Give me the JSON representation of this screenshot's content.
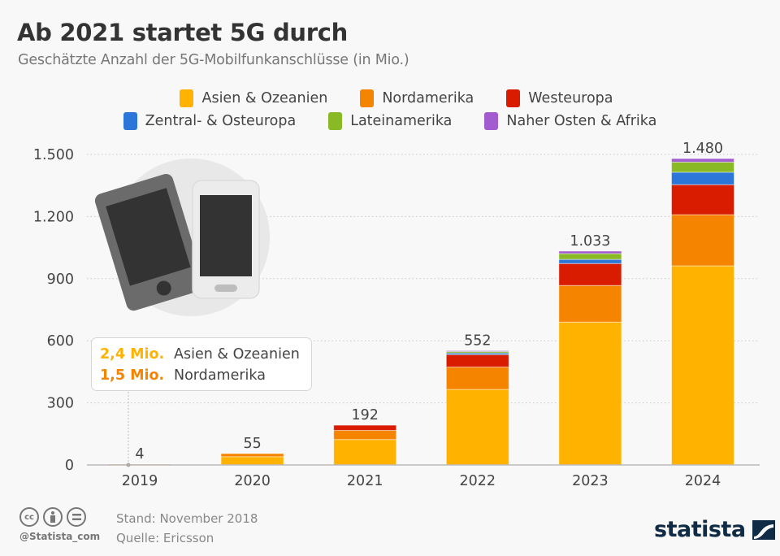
{
  "header": {
    "title": "Ab 2021 startet 5G durch",
    "subtitle": "Geschätzte Anzahl der 5G-Mobilfunkanschlüsse (in Mio.)"
  },
  "legend": [
    {
      "label": "Asien & Ozeanien",
      "color": "#ffb300"
    },
    {
      "label": "Nordamerika",
      "color": "#f58400"
    },
    {
      "label": "Westeuropa",
      "color": "#d91c00"
    },
    {
      "label": "Zentral- & Osteuropa",
      "color": "#2b76d8"
    },
    {
      "label": "Lateinamerika",
      "color": "#89ba25"
    },
    {
      "label": "Naher Osten & Afrika",
      "color": "#a25cd0"
    }
  ],
  "annotation": {
    "rows": [
      {
        "value": "2,4 Mio.",
        "label": "Asien & Ozeanien",
        "color": "#ffb300"
      },
      {
        "value": "1,5 Mio.",
        "label": "Nordamerika",
        "color": "#f58400"
      }
    ]
  },
  "chart_data": {
    "type": "bar",
    "stacked": true,
    "title": "Ab 2021 startet 5G durch",
    "subtitle": "Geschätzte Anzahl der 5G-Mobilfunkanschlüsse (in Mio.)",
    "xlabel": "",
    "ylabel": "",
    "ylim": [
      0,
      1500
    ],
    "yticks": [
      0,
      300,
      600,
      900,
      1200,
      1500
    ],
    "ytick_labels": [
      "0",
      "300",
      "600",
      "900",
      "1.200",
      "1.500"
    ],
    "grid": true,
    "legend_position": "top",
    "categories": [
      "2019",
      "2020",
      "2021",
      "2022",
      "2023",
      "2024"
    ],
    "totals": [
      4,
      55,
      192,
      552,
      1033,
      1480
    ],
    "total_labels": [
      "4",
      "55",
      "192",
      "552",
      "1.033",
      "1.480"
    ],
    "series": [
      {
        "name": "Asien & Ozeanien",
        "color": "#ffb300",
        "values": [
          2.4,
          40,
          123,
          365,
          690,
          962
        ]
      },
      {
        "name": "Nordamerika",
        "color": "#f58400",
        "values": [
          1.5,
          15,
          44,
          108,
          177,
          247
        ]
      },
      {
        "name": "Westeuropa",
        "color": "#d91c00",
        "values": [
          0,
          0,
          25,
          60,
          106,
          145
        ]
      },
      {
        "name": "Zentral- & Osteuropa",
        "color": "#2b76d8",
        "values": [
          0,
          0,
          0,
          8,
          20,
          60
        ]
      },
      {
        "name": "Lateinamerika",
        "color": "#89ba25",
        "values": [
          0,
          0,
          0,
          7,
          28,
          49
        ]
      },
      {
        "name": "Naher Osten & Afrika",
        "color": "#a25cd0",
        "values": [
          0,
          0,
          0,
          4,
          12,
          17
        ]
      }
    ]
  },
  "footer": {
    "license_icons": [
      "cc-icon",
      "by-icon",
      "nd-icon"
    ],
    "handle": "@Statista_com",
    "stand": "Stand: November 2018",
    "source": "Quelle: Ericsson",
    "brand": "statista"
  }
}
